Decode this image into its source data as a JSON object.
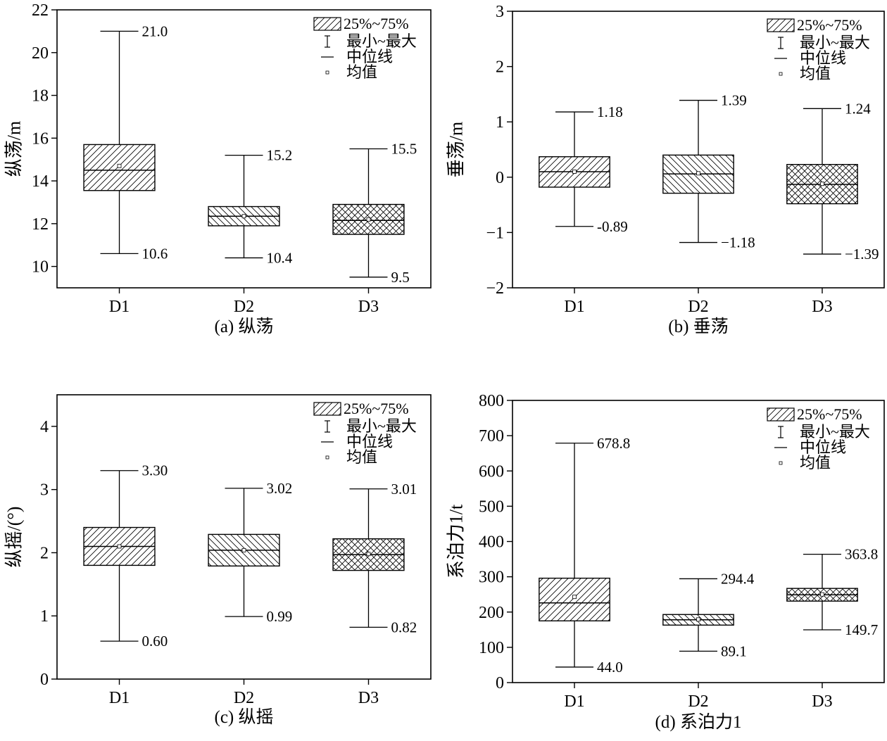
{
  "chart_data": [
    {
      "id": "a",
      "type": "boxplot",
      "caption": "(a) 纵荡",
      "ylabel": "纵荡/m",
      "ylim": [
        9,
        22
      ],
      "yticks": [
        10,
        12,
        14,
        16,
        18,
        20,
        22
      ],
      "ytick_labels": [
        "10",
        "12",
        "14",
        "16",
        "18",
        "20",
        "22"
      ],
      "categories": [
        "D1",
        "D2",
        "D3"
      ],
      "legend": [
        "25%~75%",
        "最小~最大",
        "中位线",
        "均值"
      ],
      "legend_position": "top-right",
      "boxes": [
        {
          "category": "D1",
          "min": 10.6,
          "q1": 13.55,
          "median": 14.5,
          "q3": 15.7,
          "max": 21.0,
          "mean": 14.7,
          "min_label": "10.6",
          "max_label": "21.0",
          "pattern": "hatch-fwd"
        },
        {
          "category": "D2",
          "min": 10.4,
          "q1": 11.9,
          "median": 12.35,
          "q3": 12.8,
          "max": 15.2,
          "mean": 12.35,
          "min_label": "10.4",
          "max_label": "15.2",
          "pattern": "hatch-back"
        },
        {
          "category": "D3",
          "min": 9.5,
          "q1": 11.5,
          "median": 12.15,
          "q3": 12.9,
          "max": 15.5,
          "mean": 12.2,
          "min_label": "9.5",
          "max_label": "15.5",
          "pattern": "crosshatch"
        }
      ]
    },
    {
      "id": "b",
      "type": "boxplot",
      "caption": "(b) 垂荡",
      "ylabel": "垂荡/m",
      "ylim": [
        -2,
        3
      ],
      "yticks": [
        -2,
        -1,
        0,
        1,
        2,
        3
      ],
      "ytick_labels": [
        "−2",
        "−1",
        "0",
        "1",
        "2",
        "3"
      ],
      "categories": [
        "D1",
        "D2",
        "D3"
      ],
      "legend": [
        "25%~75%",
        "最小~最大",
        "中位线",
        "均值"
      ],
      "legend_position": "top-right",
      "boxes": [
        {
          "category": "D1",
          "min": -0.89,
          "q1": -0.18,
          "median": 0.1,
          "q3": 0.37,
          "max": 1.18,
          "mean": 0.1,
          "min_label": "-0.89",
          "max_label": "1.18",
          "pattern": "hatch-fwd"
        },
        {
          "category": "D2",
          "min": -1.18,
          "q1": -0.29,
          "median": 0.06,
          "q3": 0.4,
          "max": 1.39,
          "mean": 0.07,
          "min_label": "−1.18",
          "max_label": "1.39",
          "pattern": "hatch-back"
        },
        {
          "category": "D3",
          "min": -1.39,
          "q1": -0.48,
          "median": -0.13,
          "q3": 0.23,
          "max": 1.24,
          "mean": -0.12,
          "min_label": "−1.39",
          "max_label": "1.24",
          "pattern": "crosshatch"
        }
      ]
    },
    {
      "id": "c",
      "type": "boxplot",
      "caption": "(c) 纵摇",
      "ylabel": "纵摇/(°)",
      "ylim": [
        0,
        4.5
      ],
      "yticks": [
        0,
        1,
        2,
        3,
        4
      ],
      "ytick_labels": [
        "0",
        "1",
        "2",
        "3",
        "4"
      ],
      "categories": [
        "D1",
        "D2",
        "D3"
      ],
      "legend": [
        "25%~75%",
        "最小~最大",
        "中位线",
        "均值"
      ],
      "legend_position": "top-right",
      "boxes": [
        {
          "category": "D1",
          "min": 0.6,
          "q1": 1.8,
          "median": 2.1,
          "q3": 2.4,
          "max": 3.3,
          "mean": 2.1,
          "min_label": "0.60",
          "max_label": "3.30",
          "pattern": "hatch-fwd"
        },
        {
          "category": "D2",
          "min": 0.99,
          "q1": 1.79,
          "median": 2.04,
          "q3": 2.29,
          "max": 3.02,
          "mean": 2.04,
          "min_label": "0.99",
          "max_label": "3.02",
          "pattern": "hatch-back"
        },
        {
          "category": "D3",
          "min": 0.82,
          "q1": 1.72,
          "median": 1.97,
          "q3": 2.22,
          "max": 3.01,
          "mean": 1.98,
          "min_label": "0.82",
          "max_label": "3.01",
          "pattern": "crosshatch"
        }
      ]
    },
    {
      "id": "d",
      "type": "boxplot",
      "caption": "(d) 系泊力1",
      "ylabel": "系泊力1/t",
      "ylim": [
        0,
        800
      ],
      "yticks": [
        0,
        100,
        200,
        300,
        400,
        500,
        600,
        700,
        800
      ],
      "ytick_labels": [
        "0",
        "100",
        "200",
        "300",
        "400",
        "500",
        "600",
        "700",
        "800"
      ],
      "categories": [
        "D1",
        "D2",
        "D3"
      ],
      "legend": [
        "25%~75%",
        "最小~最大",
        "中位线",
        "均值"
      ],
      "legend_position": "top-right",
      "boxes": [
        {
          "category": "D1",
          "min": 44.0,
          "q1": 175,
          "median": 226,
          "q3": 296,
          "max": 678.8,
          "mean": 243,
          "min_label": "44.0",
          "max_label": "678.8",
          "pattern": "hatch-fwd"
        },
        {
          "category": "D2",
          "min": 89.1,
          "q1": 163,
          "median": 178,
          "q3": 193,
          "max": 294.4,
          "mean": 179,
          "min_label": "89.1",
          "max_label": "294.4",
          "pattern": "hatch-back"
        },
        {
          "category": "D3",
          "min": 149.7,
          "q1": 231,
          "median": 249,
          "q3": 267,
          "max": 363.8,
          "mean": 250,
          "min_label": "149.7",
          "max_label": "363.8",
          "pattern": "crosshatch"
        }
      ]
    }
  ]
}
